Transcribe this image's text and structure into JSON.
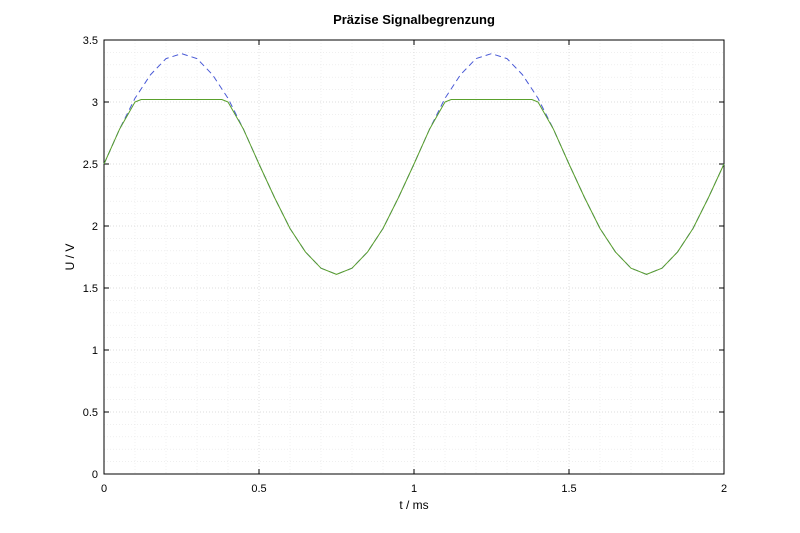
{
  "chart_data": {
    "type": "line",
    "title": "Präzise Signalbegrenzung",
    "xlabel": "t / ms",
    "ylabel": "U / V",
    "xlim": [
      0,
      2
    ],
    "ylim": [
      0,
      3.5
    ],
    "xticks": [
      0,
      0.5,
      1,
      1.5,
      2
    ],
    "xtick_labels": [
      "0",
      "0.5",
      "1",
      "1.5",
      "2"
    ],
    "yticks": [
      0,
      0.5,
      1,
      1.5,
      2,
      2.5,
      3,
      3.5
    ],
    "ytick_labels": [
      "0",
      "0.5",
      "1",
      "1.5",
      "2",
      "2.5",
      "3",
      "3.5"
    ],
    "grid": true,
    "minor_grid": true,
    "series": [
      {
        "style": "dashed",
        "color": "#4a5ad6",
        "x": [
          0,
          0.05,
          0.1,
          0.15,
          0.2,
          0.25,
          0.3,
          0.35,
          0.4,
          0.45,
          0.5,
          0.55,
          0.6,
          0.65,
          0.7,
          0.75,
          0.8,
          0.85,
          0.9,
          0.95,
          1.0,
          1.05,
          1.1,
          1.15,
          1.2,
          1.25,
          1.3,
          1.35,
          1.4,
          1.45,
          1.5,
          1.55,
          1.6,
          1.65,
          1.7,
          1.75,
          1.8,
          1.85,
          1.9,
          1.95,
          2.0
        ],
        "values": [
          2.5,
          2.78,
          3.03,
          3.22,
          3.35,
          3.39,
          3.35,
          3.22,
          3.03,
          2.78,
          2.5,
          2.23,
          1.98,
          1.79,
          1.66,
          1.61,
          1.66,
          1.79,
          1.98,
          2.23,
          2.5,
          2.78,
          3.03,
          3.22,
          3.35,
          3.39,
          3.35,
          3.22,
          3.03,
          2.78,
          2.5,
          2.23,
          1.98,
          1.79,
          1.66,
          1.61,
          1.66,
          1.79,
          1.98,
          2.23,
          2.5
        ]
      },
      {
        "style": "solid",
        "color": "#5aa02c",
        "x": [
          0,
          0.05,
          0.1,
          0.12,
          0.15,
          0.2,
          0.25,
          0.3,
          0.35,
          0.38,
          0.4,
          0.45,
          0.5,
          0.55,
          0.6,
          0.65,
          0.7,
          0.75,
          0.8,
          0.85,
          0.9,
          0.95,
          1.0,
          1.05,
          1.1,
          1.12,
          1.15,
          1.2,
          1.25,
          1.3,
          1.35,
          1.38,
          1.4,
          1.45,
          1.5,
          1.55,
          1.6,
          1.65,
          1.7,
          1.75,
          1.8,
          1.85,
          1.9,
          1.95,
          2.0
        ],
        "values": [
          2.5,
          2.78,
          3.0,
          3.02,
          3.02,
          3.02,
          3.02,
          3.02,
          3.02,
          3.02,
          3.0,
          2.78,
          2.5,
          2.23,
          1.98,
          1.79,
          1.66,
          1.61,
          1.66,
          1.79,
          1.98,
          2.23,
          2.5,
          2.78,
          3.0,
          3.02,
          3.02,
          3.02,
          3.02,
          3.02,
          3.02,
          3.02,
          3.0,
          2.78,
          2.5,
          2.23,
          1.98,
          1.79,
          1.66,
          1.61,
          1.66,
          1.79,
          1.98,
          2.23,
          2.5
        ]
      }
    ]
  }
}
